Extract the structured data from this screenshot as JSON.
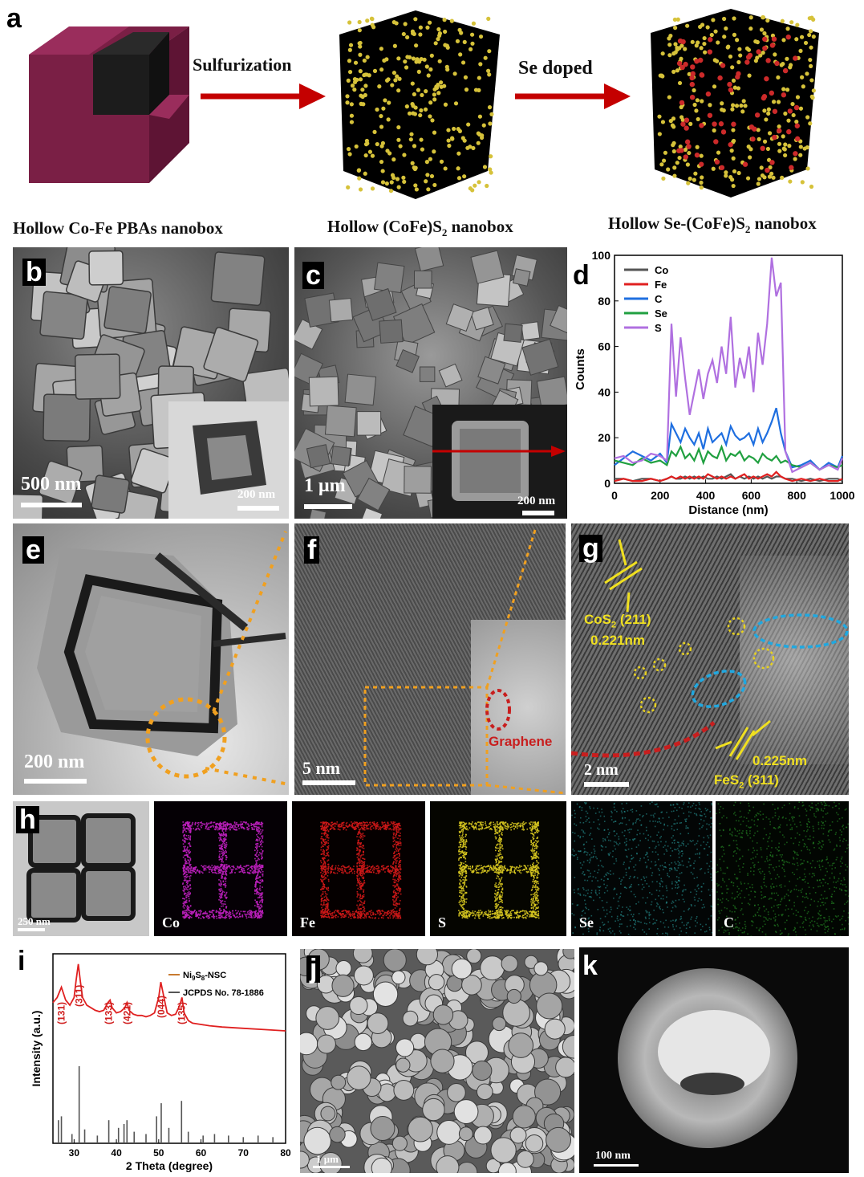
{
  "panel_a": {
    "label": "a",
    "step1": "Sulfurization",
    "step2": "Se doped",
    "caption1": "Hollow Co-Fe PBAs nanobox",
    "caption2_pre": "Hollow (CoFe)S",
    "caption2_sub": "2",
    "caption2_post": " nanobox",
    "caption3_pre": "Hollow Se-(CoFe)S",
    "caption3_sub": "2",
    "caption3_post": " nanobox",
    "colors": {
      "box": "#7a1f45",
      "arrow": "#c40000",
      "dots": "#d6c23a",
      "se_dots": "#cc2a2a"
    }
  },
  "panel_b": {
    "label": "b",
    "scale_main": "500 nm",
    "scale_inset": "200 nm"
  },
  "panel_c": {
    "label": "c",
    "scale_main": "1 μm",
    "scale_inset": "200 nm"
  },
  "panel_d": {
    "label": "d"
  },
  "panel_e": {
    "label": "e",
    "scale": "200 nm"
  },
  "panel_f": {
    "label": "f",
    "scale": "5 nm",
    "annotation": "Graphene"
  },
  "panel_g": {
    "label": "g",
    "scale": "2 nm",
    "cos2_pre": "CoS",
    "cos2_sub": "2",
    "cos2_post": " (211)",
    "cos2_d": "0.221nm",
    "fes2_pre": "FeS",
    "fes2_sub": "2",
    "fes2_post": " (311)",
    "fes2_d": "0.225nm"
  },
  "panel_h": {
    "label": "h",
    "scale": "250 nm",
    "maps": [
      {
        "name": "Co",
        "color": "#c020c0"
      },
      {
        "name": "Fe",
        "color": "#d01818"
      },
      {
        "name": "S",
        "color": "#d8c820"
      },
      {
        "name": "Se",
        "color": "#2aa0a0"
      },
      {
        "name": "C",
        "color": "#2a9a2a"
      }
    ]
  },
  "panel_i": {
    "label": "i"
  },
  "panel_j": {
    "label": "j",
    "scale": "1 μm"
  },
  "panel_k": {
    "label": "k",
    "scale": "100 nm"
  },
  "chart_data": [
    {
      "type": "line",
      "panel": "d",
      "title": "",
      "xlabel": "Distance (nm)",
      "ylabel": "Counts",
      "xlim": [
        0,
        1000
      ],
      "ylim": [
        0,
        100
      ],
      "xticks": [
        0,
        200,
        400,
        600,
        800,
        1000
      ],
      "yticks": [
        0,
        20,
        40,
        60,
        80,
        100
      ],
      "legend_position": "top-left",
      "x": [
        0,
        40,
        80,
        120,
        160,
        200,
        230,
        250,
        270,
        290,
        310,
        330,
        350,
        370,
        390,
        410,
        430,
        450,
        470,
        490,
        510,
        530,
        550,
        570,
        590,
        610,
        630,
        650,
        670,
        690,
        710,
        730,
        750,
        780,
        820,
        860,
        900,
        940,
        980,
        1000
      ],
      "series": [
        {
          "name": "Co",
          "color": "#555555",
          "values": [
            2,
            2,
            1,
            2,
            2,
            1,
            2,
            3,
            2,
            2,
            3,
            2,
            3,
            2,
            3,
            2,
            2,
            3,
            2,
            3,
            4,
            2,
            3,
            2,
            3,
            2,
            3,
            2,
            3,
            2,
            3,
            3,
            2,
            2,
            1,
            2,
            1,
            2,
            2,
            1
          ]
        },
        {
          "name": "Fe",
          "color": "#e02020",
          "values": [
            1,
            2,
            1,
            1,
            2,
            1,
            2,
            3,
            2,
            3,
            2,
            3,
            2,
            3,
            2,
            4,
            3,
            2,
            3,
            2,
            3,
            2,
            3,
            4,
            2,
            3,
            2,
            3,
            4,
            3,
            5,
            3,
            2,
            1,
            2,
            1,
            2,
            1,
            1,
            2
          ]
        },
        {
          "name": "C",
          "color": "#1f6fe0",
          "values": [
            8,
            11,
            14,
            12,
            10,
            13,
            9,
            26,
            22,
            18,
            24,
            20,
            17,
            22,
            15,
            24,
            18,
            20,
            22,
            17,
            25,
            21,
            19,
            20,
            22,
            17,
            24,
            18,
            22,
            27,
            33,
            22,
            14,
            7,
            8,
            10,
            6,
            9,
            7,
            12
          ]
        },
        {
          "name": "Se",
          "color": "#20a040",
          "values": [
            10,
            9,
            8,
            11,
            9,
            10,
            8,
            14,
            12,
            16,
            11,
            13,
            10,
            15,
            9,
            14,
            12,
            11,
            16,
            10,
            13,
            12,
            14,
            10,
            12,
            11,
            9,
            13,
            11,
            10,
            12,
            9,
            10,
            8,
            7,
            9,
            6,
            8,
            7,
            8
          ]
        },
        {
          "name": "S",
          "color": "#b070e0",
          "values": [
            11,
            12,
            9,
            10,
            13,
            12,
            10,
            70,
            38,
            64,
            46,
            30,
            40,
            50,
            37,
            48,
            54,
            44,
            60,
            48,
            73,
            42,
            55,
            46,
            60,
            40,
            66,
            52,
            70,
            99,
            82,
            88,
            14,
            5,
            7,
            9,
            6,
            8,
            6,
            11
          ]
        }
      ]
    },
    {
      "type": "line",
      "panel": "i",
      "title": "",
      "xlabel": "2 Theta (degree)",
      "ylabel": "Intensity (a.u.)",
      "xlim": [
        25,
        80
      ],
      "xticks": [
        30,
        40,
        50,
        60,
        70,
        80
      ],
      "legend_position": "top-right",
      "legend": [
        {
          "label": "Ni",
          "sub1": "9",
          "mid": "S",
          "sub2": "8",
          "post": "-NSC",
          "color": "#c87a30"
        },
        {
          "label": "JCPDS No. 78-1886",
          "color": "#555555"
        }
      ],
      "peak_labels": [
        {
          "label": "(131)",
          "x": 27.0
        },
        {
          "label": "(311)",
          "x": 31.2
        },
        {
          "label": "(133)",
          "x": 38.2
        },
        {
          "label": "(421)",
          "x": 42.5
        },
        {
          "label": "(044)",
          "x": 50.6
        },
        {
          "label": "(135)",
          "x": 55.4
        }
      ],
      "pattern_x": [
        25,
        26,
        27,
        28,
        29,
        30,
        30.5,
        31,
        31.5,
        32,
        33,
        34,
        35,
        36,
        37,
        38,
        38.5,
        39,
        40,
        41,
        42,
        42.5,
        43,
        44,
        45,
        46,
        47,
        48,
        49,
        50,
        50.5,
        51,
        52,
        53,
        54,
        55,
        55.5,
        56,
        57,
        58,
        60,
        62,
        65,
        70,
        75,
        80
      ],
      "pattern_y": [
        62,
        66,
        74,
        64,
        60,
        66,
        80,
        92,
        78,
        66,
        60,
        58,
        56,
        55,
        56,
        62,
        64,
        58,
        54,
        55,
        58,
        62,
        56,
        53,
        52,
        52,
        51,
        52,
        54,
        66,
        78,
        70,
        54,
        52,
        53,
        60,
        66,
        54,
        48,
        46,
        45,
        44,
        43,
        42,
        41,
        40
      ],
      "ref_x": [
        26.3,
        27.0,
        29.5,
        31.2,
        32.5,
        35.5,
        38.2,
        40.5,
        41.8,
        42.5,
        44.2,
        47.0,
        49.5,
        50.6,
        52.4,
        55.4,
        57.0,
        60.5,
        63.2,
        66.5,
        70.0,
        73.5,
        77.0
      ],
      "ref_h": [
        0.3,
        0.35,
        0.12,
        1.0,
        0.18,
        0.1,
        0.3,
        0.2,
        0.25,
        0.3,
        0.15,
        0.12,
        0.35,
        0.52,
        0.2,
        0.55,
        0.15,
        0.1,
        0.12,
        0.1,
        0.08,
        0.1,
        0.08
      ]
    }
  ]
}
